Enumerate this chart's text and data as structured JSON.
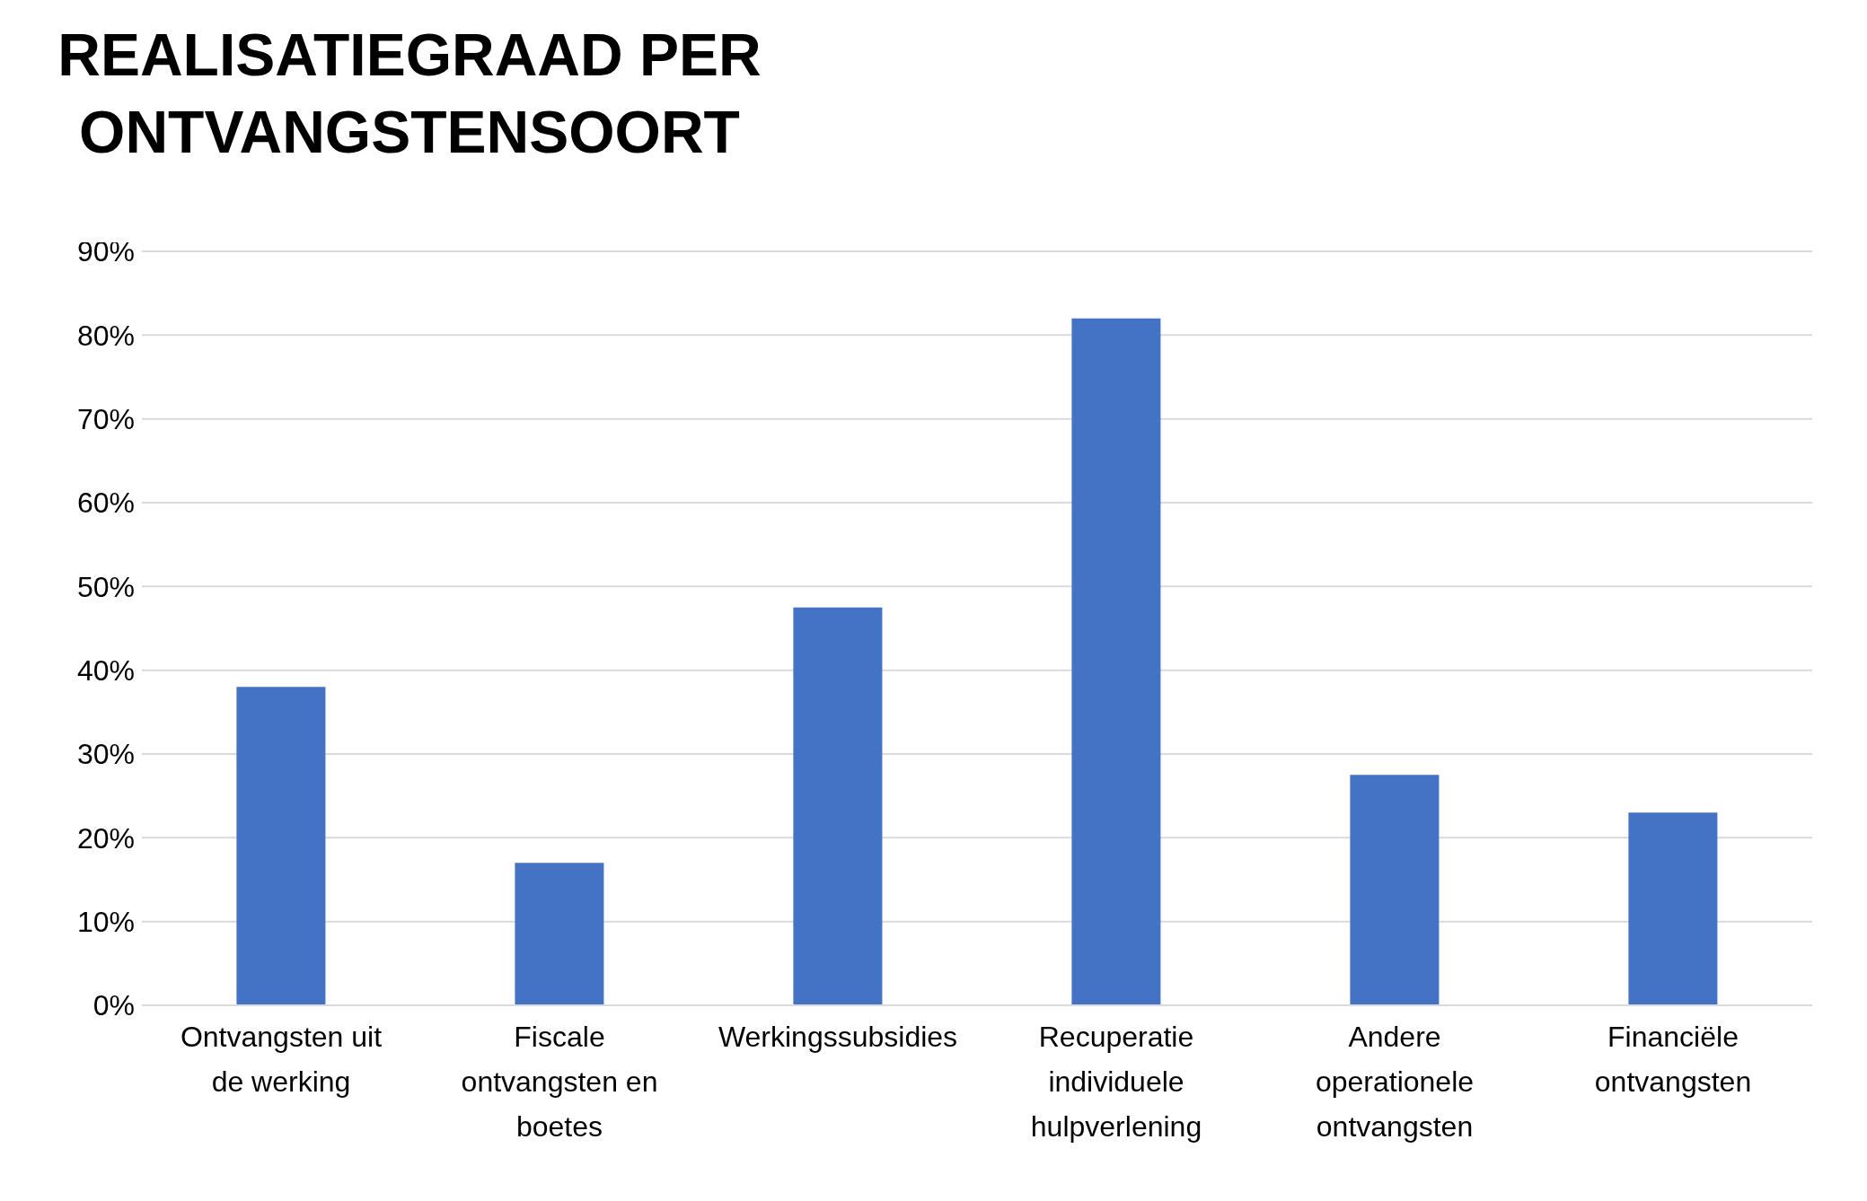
{
  "chart_data": {
    "type": "bar",
    "title": "REALISATIEGRAAD PER ONTVANGSTENSOORT",
    "categories": [
      "Ontvangsten uit de werking",
      "Fiscale ontvangsten en boetes",
      "Werkingssubsidies",
      "Recuperatie individuele hulpverlening",
      "Andere operationele ontvangsten",
      "Financiële ontvangsten"
    ],
    "values": [
      38,
      17,
      47.5,
      82,
      27.5,
      23
    ],
    "color": "#4472c4",
    "ylim": [
      0,
      90
    ],
    "yticks": [
      {
        "value": 0,
        "label": "0%"
      },
      {
        "value": 10,
        "label": "10%"
      },
      {
        "value": 20,
        "label": "20%"
      },
      {
        "value": 30,
        "label": "30%"
      },
      {
        "value": 40,
        "label": "40%"
      },
      {
        "value": 50,
        "label": "50%"
      },
      {
        "value": 60,
        "label": "60%"
      },
      {
        "value": 70,
        "label": "70%"
      },
      {
        "value": 80,
        "label": "80%"
      },
      {
        "value": 90,
        "label": "90%"
      }
    ],
    "grid": "y",
    "legend": false
  }
}
